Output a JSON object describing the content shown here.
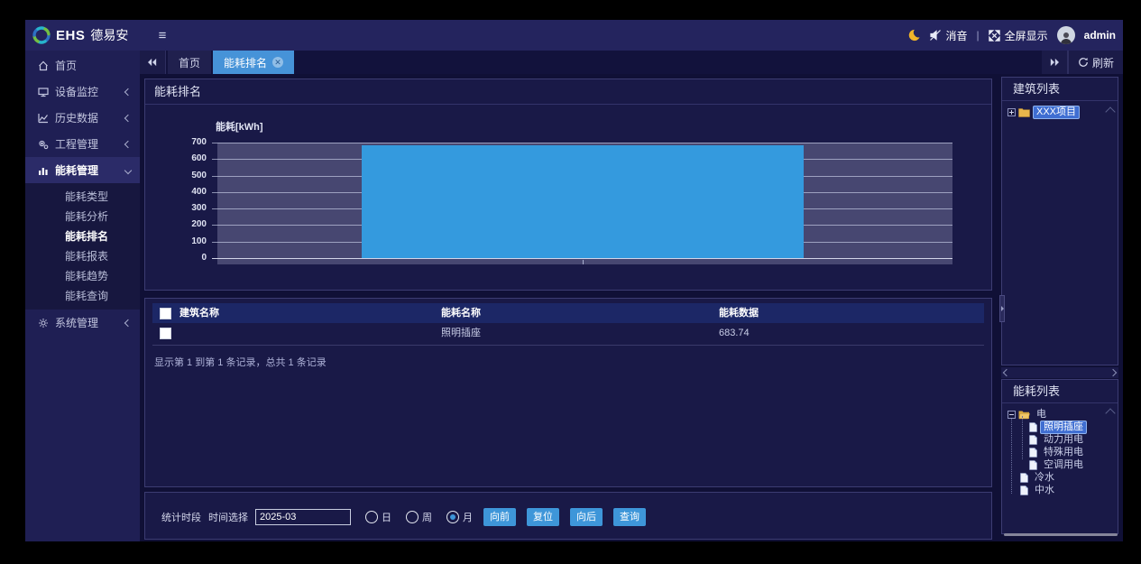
{
  "brand": {
    "ehs": "EHS",
    "name": "德易安"
  },
  "topbar": {
    "mute": "消音",
    "divider": "|",
    "fullscreen": "全屏显示",
    "user": "admin"
  },
  "sidebar": {
    "items": [
      {
        "label": "首页"
      },
      {
        "label": "设备监控"
      },
      {
        "label": "历史数据"
      },
      {
        "label": "工程管理"
      },
      {
        "label": "能耗管理"
      },
      {
        "label": "系统管理"
      }
    ],
    "submenu": [
      {
        "label": "能耗类型"
      },
      {
        "label": "能耗分析"
      },
      {
        "label": "能耗排名"
      },
      {
        "label": "能耗报表"
      },
      {
        "label": "能耗趋势"
      },
      {
        "label": "能耗查询"
      }
    ]
  },
  "tabbar": {
    "tabs": [
      {
        "label": "首页"
      },
      {
        "label": "能耗排名"
      }
    ],
    "refresh": "刷新"
  },
  "panel_title": "能耗排名",
  "chart_data": {
    "type": "bar",
    "categories": [
      "照明插座"
    ],
    "values": [
      683.74
    ],
    "title": "能耗排名",
    "xlabel": "",
    "ylabel": "能耗[kWh]",
    "ylim": [
      0,
      700
    ],
    "yticks": [
      0,
      100,
      200,
      300,
      400,
      500,
      600,
      700
    ],
    "bar_color": "#349ade",
    "grid": true,
    "legend": false
  },
  "table": {
    "headers": [
      "建筑名称",
      "能耗名称",
      "能耗数据"
    ],
    "rows": [
      {
        "building": "",
        "energy": "照明插座",
        "value": "683.74"
      }
    ],
    "summary": "显示第 1 到第 1 条记录，总共 1 条记录"
  },
  "controls": {
    "period_label": "统计时段",
    "time_label": "时间选择",
    "date_value": "2025-03",
    "radios": [
      {
        "label": "日",
        "checked": false
      },
      {
        "label": "周",
        "checked": false
      },
      {
        "label": "月",
        "checked": true
      }
    ],
    "buttons": [
      {
        "label": "向前"
      },
      {
        "label": "复位"
      },
      {
        "label": "向后"
      },
      {
        "label": "查询"
      }
    ]
  },
  "building_panel": {
    "title": "建筑列表",
    "nodes": [
      {
        "label": "XXX项目",
        "selected": true
      }
    ]
  },
  "energy_panel": {
    "title": "能耗列表",
    "nodes": [
      {
        "label": "电",
        "selected": false
      },
      {
        "label": "照明插座",
        "selected": true
      },
      {
        "label": "动力用电",
        "selected": false
      },
      {
        "label": "特殊用电",
        "selected": false
      },
      {
        "label": "空调用电",
        "selected": false
      },
      {
        "label": "冷水",
        "selected": false
      },
      {
        "label": "中水",
        "selected": false
      }
    ]
  }
}
